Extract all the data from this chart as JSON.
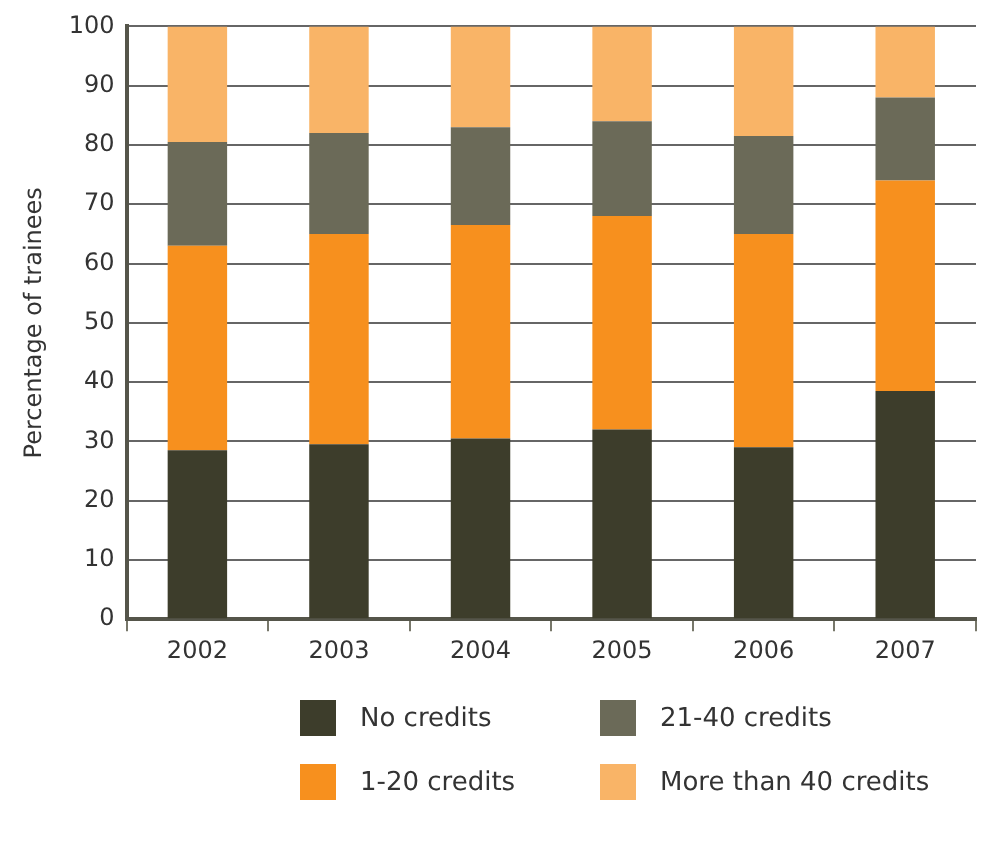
{
  "chart_data": {
    "type": "bar",
    "ylabel": "Percentage of trainees",
    "categories": [
      "2002",
      "2003",
      "2004",
      "2005",
      "2006",
      "2007"
    ],
    "stacked": true,
    "series": [
      {
        "name": "No credits",
        "color": "#3d3d2b",
        "values": [
          28.5,
          29.5,
          30.5,
          32,
          29,
          38.5
        ]
      },
      {
        "name": "1-20 credits",
        "color": "#f7901e",
        "values": [
          34.5,
          35.5,
          36,
          36,
          36,
          35.5
        ]
      },
      {
        "name": "21-40 credits",
        "color": "#6b6a58",
        "values": [
          17.5,
          17,
          16.5,
          16,
          16.5,
          14
        ]
      },
      {
        "name": "More than 40 credits",
        "color": "#f9b467",
        "values": [
          19.5,
          18,
          17,
          16,
          18.5,
          12
        ]
      }
    ],
    "ylim": [
      0,
      100
    ],
    "yticks": [
      0,
      10,
      20,
      30,
      40,
      50,
      60,
      70,
      80,
      90,
      100
    ],
    "grid": "y",
    "legend": "bottom"
  }
}
